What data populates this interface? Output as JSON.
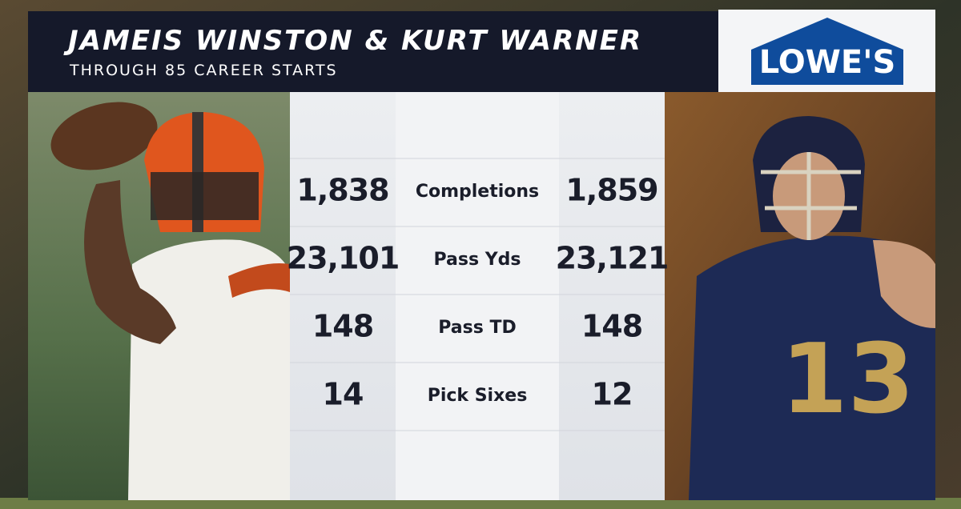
{
  "header": {
    "title": "JAMEIS WINSTON & KURT WARNER",
    "subtitle": "THROUGH 85 CAREER STARTS"
  },
  "sponsor": "LOWE'S",
  "table": {
    "rows": [
      [
        "1,838",
        "Completions",
        "1,859"
      ],
      [
        "23,101",
        "Pass Yds",
        "23,121"
      ],
      [
        "148",
        "Pass TD",
        "148"
      ],
      [
        "14",
        "Pick Sixes",
        "12"
      ]
    ]
  }
}
